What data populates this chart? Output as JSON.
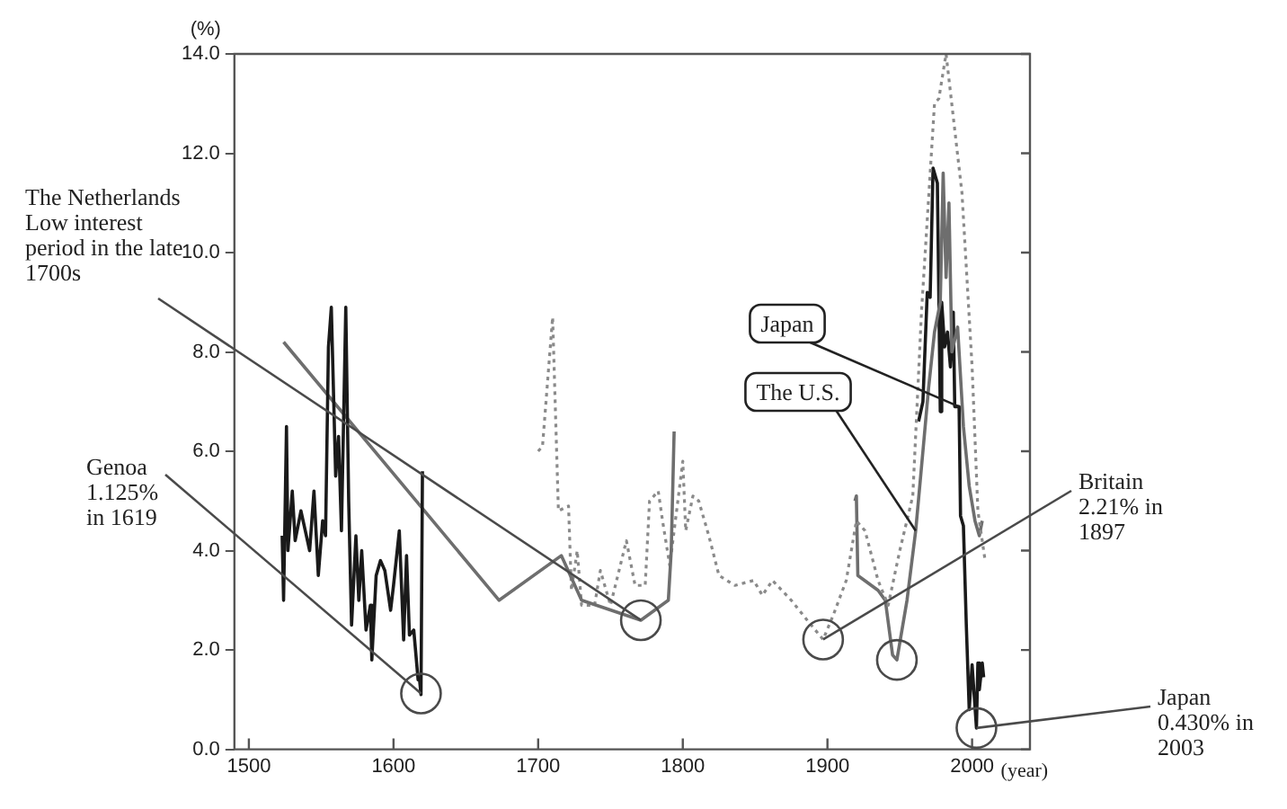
{
  "chart_data": {
    "type": "line",
    "ylabel": "(%)",
    "xlabel": "(year)",
    "xlim": [
      1490,
      2040
    ],
    "ylim": [
      0,
      14
    ],
    "xticks": [
      1500,
      1600,
      1700,
      1800,
      1900,
      2000
    ],
    "yticks": [
      {
        "value": 0,
        "label": "0.0"
      },
      {
        "value": 2,
        "label": "2.0"
      },
      {
        "value": 4,
        "label": "4.0"
      },
      {
        "value": 6,
        "label": "6.0"
      },
      {
        "value": 8,
        "label": "8.0"
      },
      {
        "value": 10,
        "label": "10.0"
      },
      {
        "value": 12,
        "label": "12.0"
      },
      {
        "value": 14,
        "label": "14.0"
      }
    ],
    "grid": false,
    "legend": false,
    "marker": "none",
    "series": [
      {
        "color": "#1a1a1a",
        "line_style": "solid",
        "x": [
          1523,
          1524,
          1526,
          1527,
          1530,
          1532,
          1536,
          1539,
          1542,
          1545,
          1548,
          1551,
          1553,
          1555,
          1557,
          1560,
          1562,
          1564,
          1567,
          1569,
          1571,
          1574,
          1576,
          1578,
          1581,
          1584,
          1585,
          1588,
          1591,
          1594,
          1598,
          1600,
          1604,
          1607,
          1609,
          1611,
          1614,
          1617,
          1618,
          1619,
          1620
        ],
        "values": [
          4.3,
          3.0,
          6.5,
          4.0,
          5.2,
          4.2,
          4.8,
          4.4,
          4.0,
          5.2,
          3.5,
          4.6,
          4.3,
          8.1,
          8.9,
          5.5,
          6.3,
          4.4,
          8.9,
          5.0,
          2.5,
          4.3,
          3.0,
          4.0,
          2.4,
          2.9,
          1.8,
          3.5,
          3.8,
          3.6,
          2.8,
          3.3,
          4.4,
          2.2,
          3.9,
          2.3,
          2.4,
          1.4,
          1.4,
          1.1,
          5.6
        ]
      },
      {
        "color": "#6e6e6e",
        "line_style": "solid",
        "x": [
          1524,
          1673,
          1716,
          1730,
          1771,
          1790,
          1792,
          1794
        ],
        "values": [
          8.2,
          3.0,
          3.9,
          3.0,
          2.6,
          3.0,
          4.0,
          6.4
        ]
      },
      {
        "color": "#8a8a8a",
        "line_style": "dotted",
        "x": [
          1700,
          1703,
          1710,
          1714,
          1721,
          1723,
          1727,
          1730,
          1739,
          1743,
          1750,
          1761,
          1767,
          1774,
          1777,
          1783,
          1786,
          1791,
          1800,
          1802,
          1807,
          1811,
          1818,
          1825,
          1836,
          1849,
          1855,
          1862,
          1875,
          1886,
          1897,
          1904,
          1913,
          1920,
          1926,
          1935,
          1942,
          1950,
          1959,
          1965,
          1974,
          1977,
          1982,
          1993,
          2000,
          2004,
          2009
        ],
        "values": [
          6.0,
          6.1,
          8.7,
          4.8,
          4.9,
          3.2,
          4.0,
          2.9,
          2.9,
          3.6,
          2.9,
          4.2,
          3.3,
          3.3,
          5.0,
          5.2,
          4.6,
          3.7,
          5.8,
          4.4,
          5.1,
          5.0,
          4.3,
          3.5,
          3.3,
          3.4,
          3.1,
          3.4,
          3.0,
          2.6,
          2.21,
          2.7,
          3.4,
          4.6,
          4.4,
          3.4,
          2.9,
          4.0,
          5.1,
          8.8,
          13.0,
          13.1,
          14.0,
          11.2,
          7.7,
          4.8,
          3.8
        ]
      },
      {
        "name": "The U.S.",
        "color": "#6e6e6e",
        "line_style": "solid",
        "x": [
          1919,
          1920,
          1921,
          1935,
          1940,
          1945,
          1948,
          1955,
          1961,
          1966,
          1970,
          1974,
          1978,
          1980,
          1982,
          1984,
          1986,
          1990,
          1994,
          1998,
          2002,
          2005,
          2007
        ],
        "values": [
          5.0,
          5.1,
          3.5,
          3.2,
          3.0,
          1.9,
          1.8,
          3.0,
          4.4,
          6.0,
          7.3,
          8.4,
          9.0,
          11.6,
          9.5,
          11.0,
          8.0,
          8.5,
          6.5,
          5.3,
          4.6,
          4.3,
          4.6
        ]
      },
      {
        "name": "Japan",
        "color": "#1a1a1a",
        "line_style": "solid",
        "x": [
          1963,
          1966,
          1969,
          1971,
          1973,
          1976,
          1978,
          1979,
          1981,
          1983,
          1985,
          1987,
          1988,
          1991,
          1992,
          1994,
          1996,
          1998,
          2000,
          2003,
          2004,
          2005,
          2007,
          2008
        ],
        "values": [
          6.6,
          7.0,
          9.2,
          9.1,
          11.7,
          11.4,
          6.8,
          9.0,
          8.1,
          8.4,
          7.7,
          8.8,
          6.9,
          6.9,
          4.7,
          4.5,
          2.5,
          0.8,
          1.7,
          0.43,
          1.74,
          1.2,
          1.74,
          1.45
        ]
      }
    ],
    "annotations": [
      {
        "text": "Genoa 1.125% in 1619",
        "x": 1619,
        "y": 1.125
      },
      {
        "text": "The Netherlands Low interest period in the late 1700s",
        "x": 1771,
        "y": 2.6
      },
      {
        "text": "Britain 2.21% in 1897",
        "x": 1897,
        "y": 2.21
      },
      {
        "text": "Japan 0.430% in 2003",
        "x": 2003,
        "y": 0.43
      }
    ]
  }
}
